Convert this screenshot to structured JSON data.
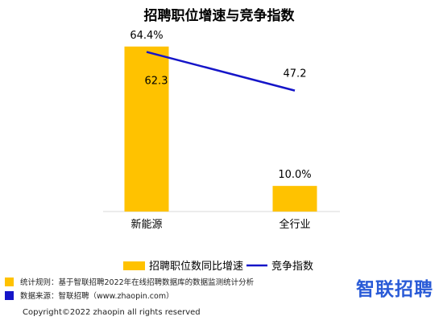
{
  "chart_data": {
    "type": "bar",
    "title": "招聘职位增速与竞争指数",
    "categories": [
      "新能源",
      "全行业"
    ],
    "series": [
      {
        "name": "招聘职位数同比增速",
        "type": "bar",
        "values": [
          64.4,
          10.0
        ],
        "labels": [
          "64.4%",
          "10.0%"
        ],
        "color": "#FFC200"
      },
      {
        "name": "竞争指数",
        "type": "line",
        "values": [
          62.3,
          47.2
        ],
        "labels": [
          "62.3",
          "47.2"
        ],
        "color": "#1515C8"
      }
    ],
    "ylim_bar": [
      0,
      70
    ],
    "ylim_line": [
      0,
      70
    ],
    "grid": false,
    "legend_position": "bottom"
  },
  "footer": {
    "rule_text": "统计规则：基于智联招聘2022年在线招聘数据库的数据监测统计分析",
    "source_text": "数据来源：智联招聘（www.zhaopin.com）",
    "copyright": "Copyright©2022 zhaopin all rights reserved",
    "rule_color": "#FFC200",
    "source_color": "#1515C8"
  },
  "brand": {
    "logo_text": "智联招聘",
    "color": "#2a5bd7"
  }
}
